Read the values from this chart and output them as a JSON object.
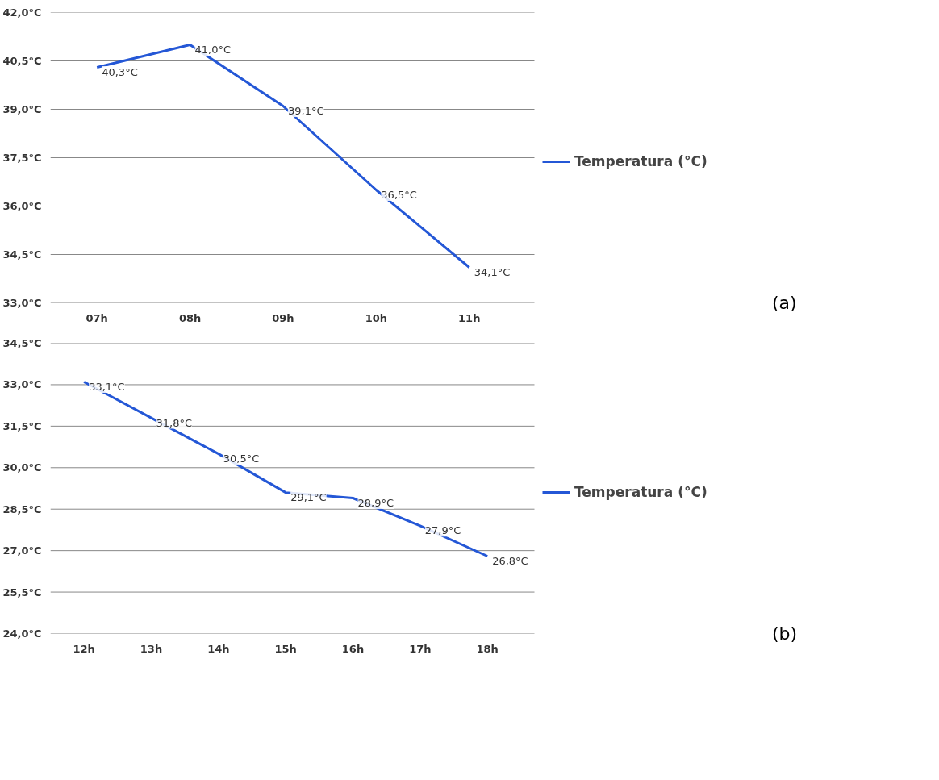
{
  "chart_data": [
    {
      "type": "line",
      "categories": [
        "07h",
        "08h",
        "09h",
        "10h",
        "11h"
      ],
      "series": [
        {
          "name": "Temperatura (°C)",
          "color": "#2457d6",
          "values": [
            40.3,
            41.0,
            39.1,
            36.5,
            34.1
          ],
          "value_labels": [
            "40,3°C",
            "41,0°C",
            "39,1°C",
            "36,5°C",
            "34,1°C"
          ]
        }
      ],
      "ylim": [
        33,
        42
      ],
      "yticks": [
        {
          "value": 33,
          "label": "33,0°C"
        },
        {
          "value": 34.5,
          "label": "34,5°C"
        },
        {
          "value": 36,
          "label": "36,0°C"
        },
        {
          "value": 37.5,
          "label": "37,5°C"
        },
        {
          "value": 39,
          "label": "39,0°C"
        },
        {
          "value": 40.5,
          "label": "40,5°C"
        },
        {
          "value": 42,
          "label": "42,0°C"
        }
      ],
      "grid": "y",
      "legend": "right",
      "marker": "none",
      "line_style": "solid",
      "annotations": [
        "(a)"
      ]
    },
    {
      "type": "line",
      "categories": [
        "12h",
        "13h",
        "14h",
        "15h",
        "16h",
        "17h",
        "18h"
      ],
      "series": [
        {
          "name": "Temperatura (°C)",
          "color": "#2457d6",
          "values": [
            33.1,
            31.8,
            30.5,
            29.1,
            28.9,
            27.9,
            26.8
          ],
          "value_labels": [
            "33,1°C",
            "31,8°C",
            "30,5°C",
            "29,1°C",
            "28,9°C",
            "27,9°C",
            "26,8°C"
          ]
        }
      ],
      "ylim": [
        24,
        34.5
      ],
      "yticks": [
        {
          "value": 24,
          "label": "24,0°C"
        },
        {
          "value": 25.5,
          "label": "25,5°C"
        },
        {
          "value": 27,
          "label": "27,0°C"
        },
        {
          "value": 28.5,
          "label": "28,5°C"
        },
        {
          "value": 30,
          "label": "30,0°C"
        },
        {
          "value": 31.5,
          "label": "31,5°C"
        },
        {
          "value": 33,
          "label": "33,0°C"
        },
        {
          "value": 34.5,
          "label": "34,5°C"
        }
      ],
      "grid": "y",
      "legend": "right",
      "marker": "none",
      "line_style": "solid",
      "annotations": [
        "(b)"
      ]
    }
  ]
}
